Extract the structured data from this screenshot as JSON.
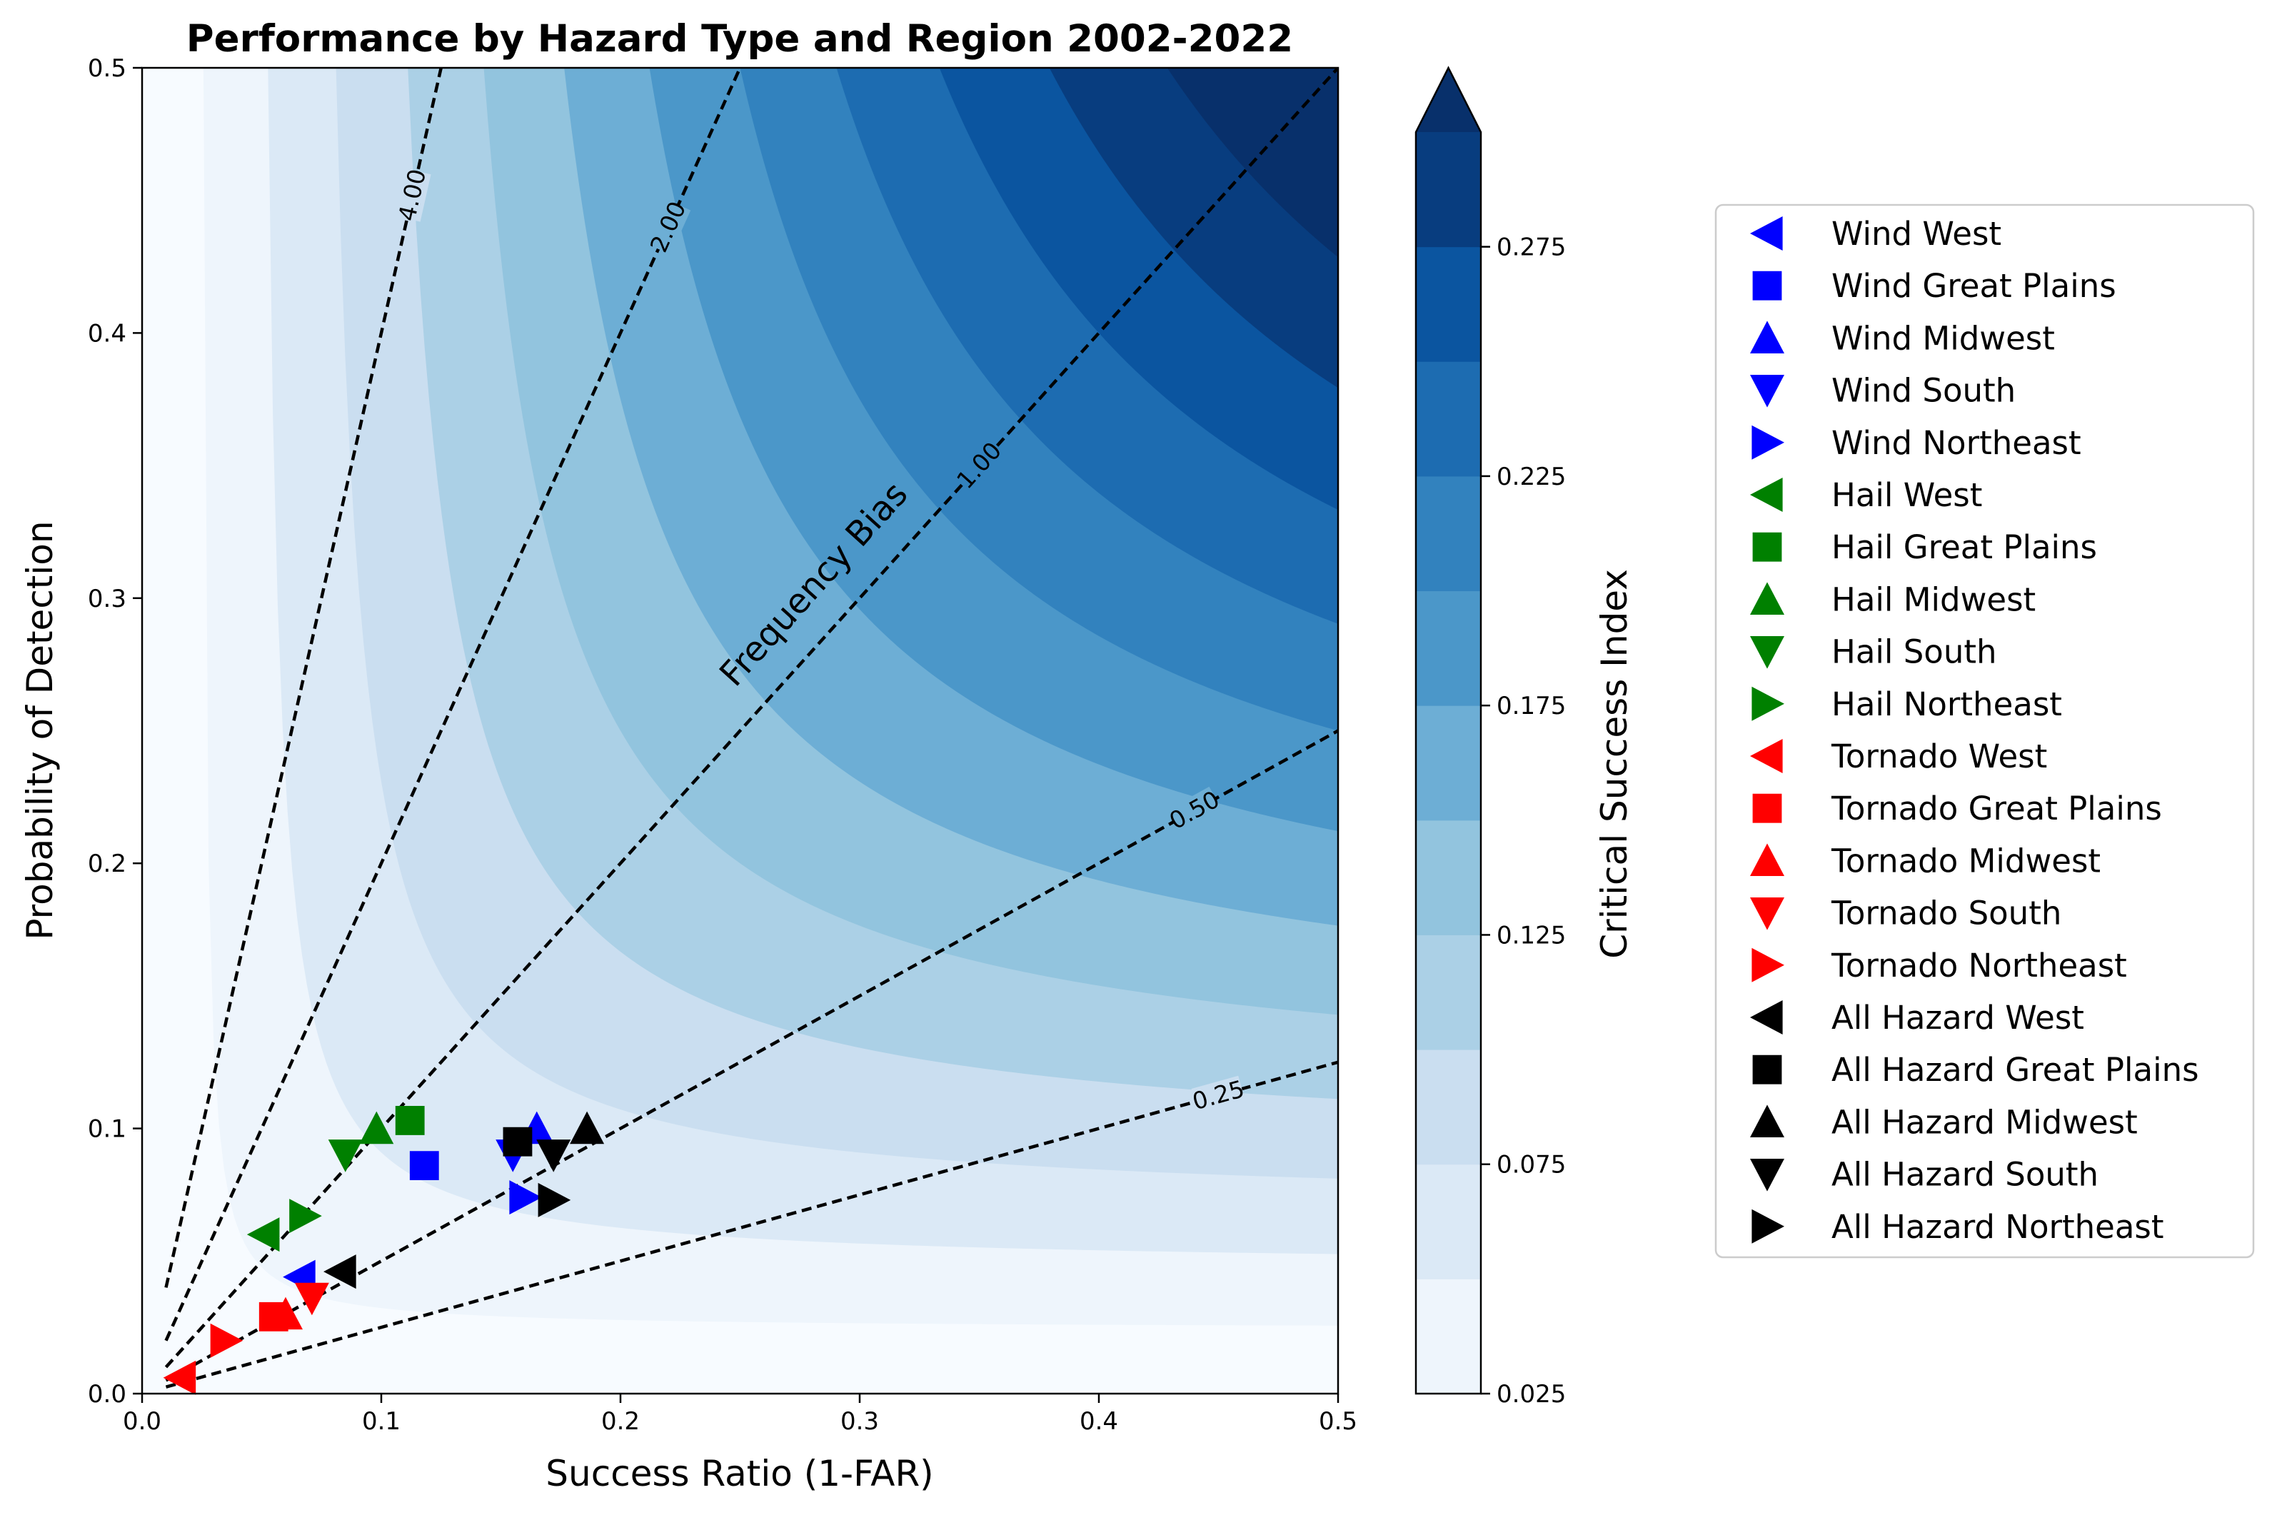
{
  "chart_data": {
    "type": "scatter",
    "title": "Performance by Hazard Type and Region 2002-2022",
    "xlabel": "Success Ratio (1-FAR)",
    "ylabel": "Probability of Detection",
    "xlim": [
      0,
      0.5
    ],
    "ylim": [
      0,
      0.5
    ],
    "xticks": [
      "0.0",
      "0.1",
      "0.2",
      "0.3",
      "0.4",
      "0.5"
    ],
    "yticks": [
      "0.0",
      "0.1",
      "0.2",
      "0.3",
      "0.4",
      "0.5"
    ],
    "grid": false,
    "background": {
      "type": "filled-contour",
      "quantity": "Critical Success Index",
      "levels": [
        0.025,
        0.05,
        0.075,
        0.1,
        0.125,
        0.15,
        0.175,
        0.2,
        0.225,
        0.25,
        0.275,
        0.3
      ],
      "colors": [
        "#f7fbff",
        "#eef5fc",
        "#dbe9f6",
        "#cadef0",
        "#abd0e6",
        "#92c4de",
        "#6daed5",
        "#4b97c9",
        "#3282be",
        "#1d6cb1",
        "#0b55a0",
        "#083d7f",
        "#08306b"
      ],
      "extend": "max"
    },
    "colorbar": {
      "label": "Critical Success Index",
      "ticks": [
        "0.025",
        "0.075",
        "0.125",
        "0.175",
        "0.225",
        "0.275"
      ],
      "tick_values": [
        0.025,
        0.075,
        0.125,
        0.175,
        0.225,
        0.275
      ]
    },
    "frequency_bias": {
      "label": "Frequency Bias",
      "lines": [
        {
          "bias": 4,
          "label": "4.00"
        },
        {
          "bias": 2,
          "label": "2.00"
        },
        {
          "bias": 1,
          "label": "1.00"
        },
        {
          "bias": 0.5,
          "label": "0.50"
        },
        {
          "bias": 0.25,
          "label": "0.25"
        }
      ]
    },
    "series": [
      {
        "name": "Wind West",
        "color": "#0000ff",
        "marker": "triangle-left",
        "x": 0.066,
        "y": 0.044
      },
      {
        "name": "Wind Great Plains",
        "color": "#0000ff",
        "marker": "square",
        "x": 0.118,
        "y": 0.086
      },
      {
        "name": "Wind Midwest",
        "color": "#0000ff",
        "marker": "triangle-up",
        "x": 0.165,
        "y": 0.1
      },
      {
        "name": "Wind South",
        "color": "#0000ff",
        "marker": "triangle-down",
        "x": 0.155,
        "y": 0.09
      },
      {
        "name": "Wind Northeast",
        "color": "#0000ff",
        "marker": "triangle-right",
        "x": 0.16,
        "y": 0.074
      },
      {
        "name": "Hail West",
        "color": "#008000",
        "marker": "triangle-left",
        "x": 0.051,
        "y": 0.06
      },
      {
        "name": "Hail Great Plains",
        "color": "#008000",
        "marker": "square",
        "x": 0.112,
        "y": 0.103
      },
      {
        "name": "Hail Midwest",
        "color": "#008000",
        "marker": "triangle-up",
        "x": 0.098,
        "y": 0.1
      },
      {
        "name": "Hail South",
        "color": "#008000",
        "marker": "triangle-down",
        "x": 0.085,
        "y": 0.09
      },
      {
        "name": "Hail Northeast",
        "color": "#008000",
        "marker": "triangle-right",
        "x": 0.068,
        "y": 0.067
      },
      {
        "name": "Tornado West",
        "color": "#ff0000",
        "marker": "triangle-left",
        "x": 0.016,
        "y": 0.006
      },
      {
        "name": "Tornado Great Plains",
        "color": "#ff0000",
        "marker": "square",
        "x": 0.055,
        "y": 0.029
      },
      {
        "name": "Tornado Midwest",
        "color": "#ff0000",
        "marker": "triangle-up",
        "x": 0.06,
        "y": 0.03
      },
      {
        "name": "Tornado South",
        "color": "#ff0000",
        "marker": "triangle-down",
        "x": 0.071,
        "y": 0.036
      },
      {
        "name": "Tornado Northeast",
        "color": "#ff0000",
        "marker": "triangle-right",
        "x": 0.035,
        "y": 0.02
      },
      {
        "name": "All Hazard West",
        "color": "#000000",
        "marker": "triangle-left",
        "x": 0.083,
        "y": 0.046
      },
      {
        "name": "All Hazard Great Plains",
        "color": "#000000",
        "marker": "square",
        "x": 0.157,
        "y": 0.095
      },
      {
        "name": "All Hazard Midwest",
        "color": "#000000",
        "marker": "triangle-up",
        "x": 0.186,
        "y": 0.1
      },
      {
        "name": "All Hazard South",
        "color": "#000000",
        "marker": "triangle-down",
        "x": 0.172,
        "y": 0.09
      },
      {
        "name": "All Hazard Northeast",
        "color": "#000000",
        "marker": "triangle-right",
        "x": 0.172,
        "y": 0.073
      }
    ],
    "legend_placement": "right, outside plot"
  }
}
